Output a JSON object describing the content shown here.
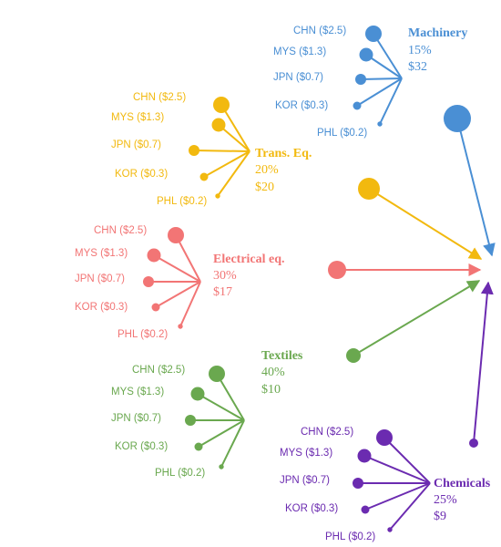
{
  "colors": {
    "Machinery": "#4a8fd4",
    "Trans. Eq.": "#f2b90f",
    "Electrical eq.": "#f27575",
    "Textiles": "#6aa84f",
    "Chemicals": "#6b2bb0"
  },
  "sectors": [
    {
      "name": "Machinery",
      "pct": "15%",
      "value": "$32",
      "sources": [
        {
          "label": "CHN ($2.5)",
          "amount": 2.5
        },
        {
          "label": "MYS ($1.3)",
          "amount": 1.3
        },
        {
          "label": "JPN ($0.7)",
          "amount": 0.7
        },
        {
          "label": "KOR ($0.3)",
          "amount": 0.3
        },
        {
          "label": "PHL ($0.2)",
          "amount": 0.2
        }
      ]
    },
    {
      "name": "Trans. Eq.",
      "pct": "20%",
      "value": "$20",
      "sources": [
        {
          "label": "CHN ($2.5)",
          "amount": 2.5
        },
        {
          "label": "MYS ($1.3)",
          "amount": 1.3
        },
        {
          "label": "JPN ($0.7)",
          "amount": 0.7
        },
        {
          "label": "KOR ($0.3)",
          "amount": 0.3
        },
        {
          "label": "PHL ($0.2)",
          "amount": 0.2
        }
      ]
    },
    {
      "name": "Electrical eq.",
      "pct": "30%",
      "value": "$17",
      "sources": [
        {
          "label": "CHN ($2.5)",
          "amount": 2.5
        },
        {
          "label": "MYS ($1.3)",
          "amount": 1.3
        },
        {
          "label": "JPN ($0.7)",
          "amount": 0.7
        },
        {
          "label": "KOR ($0.3)",
          "amount": 0.3
        },
        {
          "label": "PHL ($0.2)",
          "amount": 0.2
        }
      ]
    },
    {
      "name": "Textiles",
      "pct": "40%",
      "value": "$10",
      "sources": [
        {
          "label": "CHN ($2.5)",
          "amount": 2.5
        },
        {
          "label": "MYS ($1.3)",
          "amount": 1.3
        },
        {
          "label": "JPN ($0.7)",
          "amount": 0.7
        },
        {
          "label": "KOR ($0.3)",
          "amount": 0.3
        },
        {
          "label": "PHL ($0.2)",
          "amount": 0.2
        }
      ]
    },
    {
      "name": "Chemicals",
      "pct": "25%",
      "value": "$9",
      "sources": [
        {
          "label": "CHN ($2.5)",
          "amount": 2.5
        },
        {
          "label": "MYS ($1.3)",
          "amount": 1.3
        },
        {
          "label": "JPN ($0.7)",
          "amount": 0.7
        },
        {
          "label": "KOR ($0.3)",
          "amount": 0.3
        },
        {
          "label": "PHL ($0.2)",
          "amount": 0.2
        }
      ]
    }
  ]
}
